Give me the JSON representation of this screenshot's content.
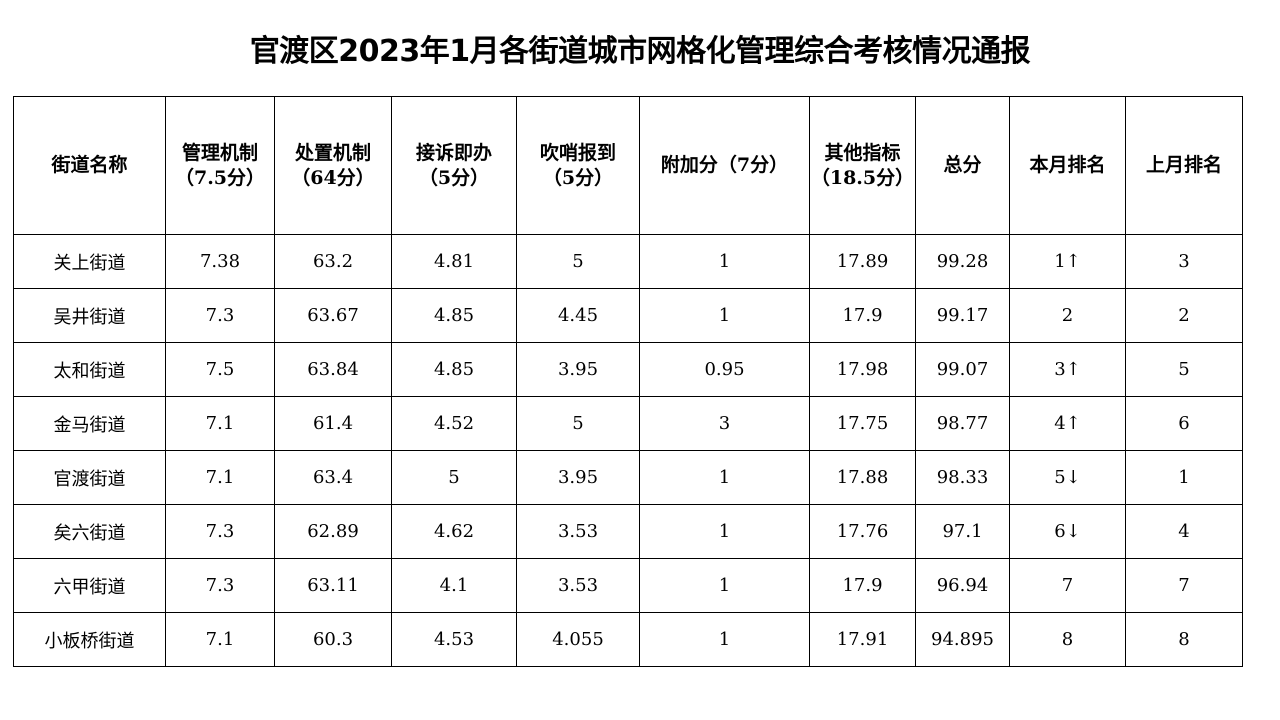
{
  "title": "官渡区2023年1月各街道城市网格化管理综合考核情况通报",
  "headers": [
    {
      "line1": "街道名称",
      "line2": ""
    },
    {
      "line1": "管理机制",
      "line2": "（7.5分）"
    },
    {
      "line1": "处置机制",
      "line2": "（64分）"
    },
    {
      "line1": "接诉即办",
      "line2": "（5分）"
    },
    {
      "line1": "吹哨报到",
      "line2": "（5分）"
    },
    {
      "line1": "附加分（7分）",
      "line2": ""
    },
    {
      "line1": "其他指标",
      "line2": "（18.5分）"
    },
    {
      "line1": "总分",
      "line2": ""
    },
    {
      "line1": "本月排名",
      "line2": ""
    },
    {
      "line1": "上月排名",
      "line2": ""
    }
  ],
  "rows": [
    [
      "关上街道",
      "7.38",
      "63.2",
      "4.81",
      "5",
      "1",
      "17.89",
      "99.28",
      "1↑",
      "3"
    ],
    [
      "吴井街道",
      "7.3",
      "63.67",
      "4.85",
      "4.45",
      "1",
      "17.9",
      "99.17",
      "2",
      "2"
    ],
    [
      "太和街道",
      "7.5",
      "63.84",
      "4.85",
      "3.95",
      "0.95",
      "17.98",
      "99.07",
      "3↑",
      "5"
    ],
    [
      "金马街道",
      "7.1",
      "61.4",
      "4.52",
      "5",
      "3",
      "17.75",
      "98.77",
      "4↑",
      "6"
    ],
    [
      "官渡街道",
      "7.1",
      "63.4",
      "5",
      "3.95",
      "1",
      "17.88",
      "98.33",
      "5↓",
      "1"
    ],
    [
      "矣六街道",
      "7.3",
      "62.89",
      "4.62",
      "3.53",
      "1",
      "17.76",
      "97.1",
      "6↓",
      "4"
    ],
    [
      "六甲街道",
      "7.3",
      "63.11",
      "4.1",
      "3.53",
      "1",
      "17.9",
      "96.94",
      "7",
      "7"
    ],
    [
      "小板桥街道",
      "7.1",
      "60.3",
      "4.53",
      "4.055",
      "1",
      "17.91",
      "94.895",
      "8",
      "8"
    ]
  ]
}
